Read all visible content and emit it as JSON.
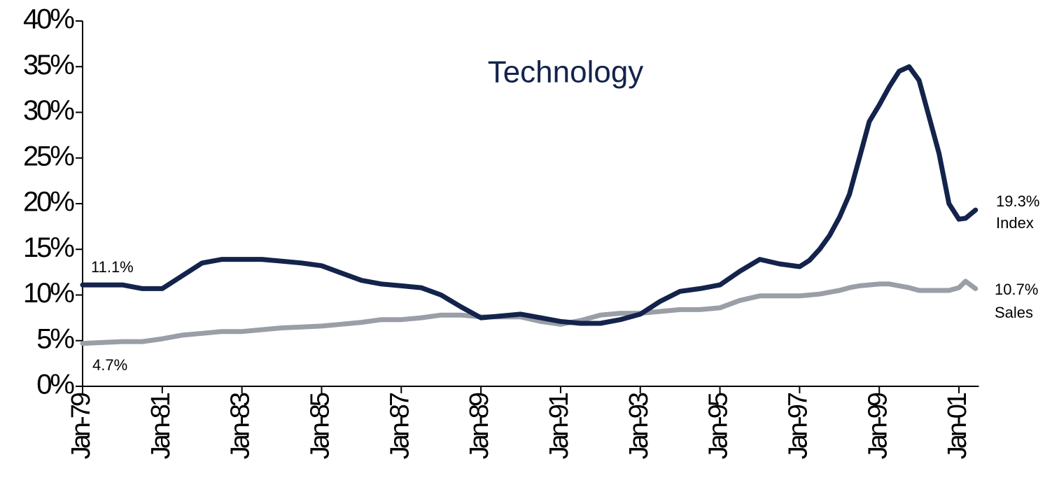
{
  "chart_data": {
    "type": "line",
    "title": "Technology",
    "x": [
      "1979-01",
      "1979-07",
      "1980-01",
      "1980-07",
      "1981-01",
      "1981-07",
      "1982-01",
      "1982-07",
      "1983-01",
      "1983-07",
      "1984-01",
      "1984-07",
      "1985-01",
      "1985-07",
      "1986-01",
      "1986-07",
      "1987-01",
      "1987-07",
      "1988-01",
      "1988-07",
      "1989-01",
      "1989-07",
      "1990-01",
      "1990-07",
      "1991-01",
      "1991-07",
      "1992-01",
      "1992-07",
      "1993-01",
      "1993-07",
      "1994-01",
      "1994-07",
      "1995-01",
      "1995-07",
      "1996-01",
      "1996-07",
      "1997-01",
      "1997-04",
      "1997-07",
      "1997-10",
      "1998-01",
      "1998-04",
      "1998-07",
      "1998-10",
      "1999-01",
      "1999-04",
      "1999-07",
      "1999-10",
      "2000-01",
      "2000-04",
      "2000-07",
      "2000-10",
      "2001-01",
      "2001-03",
      "2001-06"
    ],
    "series": [
      {
        "name": "Index",
        "color": "#13234b",
        "values": [
          11.1,
          11.1,
          11.1,
          10.7,
          10.7,
          12.1,
          13.5,
          13.9,
          13.9,
          13.9,
          13.7,
          13.5,
          13.2,
          12.4,
          11.6,
          11.2,
          11.0,
          10.8,
          10.0,
          8.7,
          7.5,
          7.7,
          7.9,
          7.5,
          7.1,
          6.9,
          6.9,
          7.3,
          7.9,
          9.3,
          10.4,
          10.7,
          11.1,
          12.6,
          13.9,
          13.4,
          13.1,
          13.8,
          15.0,
          16.5,
          18.5,
          21.0,
          25.0,
          29.0,
          30.8,
          32.8,
          34.5,
          35.0,
          33.5,
          29.5,
          25.5,
          20.0,
          18.3,
          18.4,
          19.3
        ]
      },
      {
        "name": "Sales",
        "color": "#9a9ea6",
        "values": [
          4.7,
          4.8,
          4.9,
          4.9,
          5.2,
          5.6,
          5.8,
          6.0,
          6.0,
          6.2,
          6.4,
          6.5,
          6.6,
          6.8,
          7.0,
          7.3,
          7.3,
          7.5,
          7.8,
          7.8,
          7.6,
          7.6,
          7.6,
          7.1,
          6.8,
          7.2,
          7.8,
          8.0,
          8.0,
          8.2,
          8.4,
          8.4,
          8.6,
          9.4,
          9.9,
          9.9,
          9.9,
          10.0,
          10.1,
          10.3,
          10.5,
          10.8,
          11.0,
          11.1,
          11.2,
          11.2,
          11.0,
          10.8,
          10.5,
          10.5,
          10.5,
          10.5,
          10.8,
          11.5,
          10.7
        ]
      }
    ],
    "annotations": [
      {
        "text": "11.1%"
      },
      {
        "text": "4.7%"
      },
      {
        "text": "19.3%"
      },
      {
        "text": "Index"
      },
      {
        "text": "10.7%"
      },
      {
        "text": "Sales"
      }
    ],
    "xlim": [
      "1979-01",
      "2001-07"
    ],
    "xticks": [
      {
        "value": "1979-01",
        "label": "Jan-79"
      },
      {
        "value": "1981-01",
        "label": "Jan-81"
      },
      {
        "value": "1983-01",
        "label": "Jan-83"
      },
      {
        "value": "1985-01",
        "label": "Jan-85"
      },
      {
        "value": "1987-01",
        "label": "Jan-87"
      },
      {
        "value": "1989-01",
        "label": "Jan-89"
      },
      {
        "value": "1991-01",
        "label": "Jan-91"
      },
      {
        "value": "1993-01",
        "label": "Jan-93"
      },
      {
        "value": "1995-01",
        "label": "Jan-95"
      },
      {
        "value": "1997-01",
        "label": "Jan-97"
      },
      {
        "value": "1999-01",
        "label": "Jan-99"
      },
      {
        "value": "2001-01",
        "label": "Jan-01"
      }
    ],
    "ylim": [
      0,
      40
    ],
    "yticks": [
      {
        "value": 0,
        "label": "0%"
      },
      {
        "value": 5,
        "label": "5%"
      },
      {
        "value": 10,
        "label": "10%"
      },
      {
        "value": 15,
        "label": "15%"
      },
      {
        "value": 20,
        "label": "20%"
      },
      {
        "value": 25,
        "label": "25%"
      },
      {
        "value": 30,
        "label": "30%"
      },
      {
        "value": 35,
        "label": "35%"
      },
      {
        "value": 40,
        "label": "40%"
      }
    ],
    "grid": false
  }
}
